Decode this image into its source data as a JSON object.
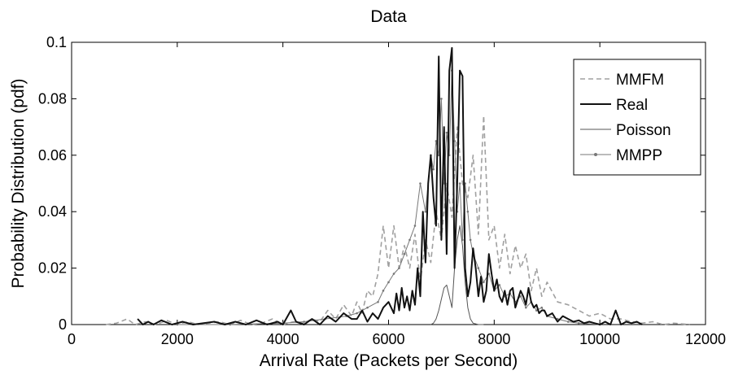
{
  "chart_data": {
    "type": "line",
    "title": "Data",
    "xlabel": "Arrival Rate (Packets per Second)",
    "ylabel": "Probability Distribution (pdf)",
    "xlim": [
      0,
      12000
    ],
    "ylim": [
      0,
      0.1
    ],
    "xticks": [
      0,
      2000,
      4000,
      6000,
      8000,
      10000,
      12000
    ],
    "yticks": [
      0,
      0.02,
      0.04,
      0.06,
      0.08,
      0.1
    ],
    "xtick_labels": [
      "0",
      "2000",
      "4000",
      "6000",
      "8000",
      "10000",
      "12000"
    ],
    "ytick_labels": [
      "0",
      "0.02",
      "0.04",
      "0.06",
      "0.08",
      "0.1"
    ],
    "grid": false,
    "legend": {
      "position": "top-right",
      "entries": [
        "MMFM",
        "Real",
        "Poisson",
        "MMPP"
      ]
    },
    "series": [
      {
        "name": "MMFM",
        "style": "dashed",
        "color": "#a0a0a0",
        "x": [
          650,
          850,
          1050,
          1200,
          1400,
          1600,
          1800,
          2000,
          2200,
          2400,
          2600,
          2800,
          3000,
          3200,
          3400,
          3600,
          3800,
          4000,
          4200,
          4400,
          4550,
          4700,
          4850,
          5000,
          5150,
          5300,
          5400,
          5500,
          5600,
          5700,
          5800,
          5900,
          6000,
          6100,
          6200,
          6300,
          6400,
          6500,
          6600,
          6700,
          6800,
          6900,
          7000,
          7100,
          7200,
          7300,
          7400,
          7500,
          7600,
          7700,
          7800,
          7900,
          8000,
          8100,
          8200,
          8300,
          8400,
          8500,
          8600,
          8700,
          8800,
          8900,
          9000,
          9200,
          9400,
          9600,
          9800,
          10000,
          10200,
          10400,
          10600,
          10800,
          11000,
          11200,
          11400,
          11700
        ],
        "y": [
          0.0,
          0.0005,
          0.002,
          0.0,
          0.001,
          0.0,
          0.0015,
          0.0,
          0.001,
          0.0,
          0.0005,
          0.001,
          0.0,
          0.0015,
          0.0,
          0.0005,
          0.002,
          0.0,
          0.001,
          0.0005,
          0.002,
          0.001,
          0.005,
          0.002,
          0.007,
          0.003,
          0.008,
          0.004,
          0.012,
          0.01,
          0.018,
          0.035,
          0.02,
          0.035,
          0.02,
          0.028,
          0.02,
          0.032,
          0.015,
          0.03,
          0.022,
          0.04,
          0.03,
          0.05,
          0.038,
          0.07,
          0.05,
          0.045,
          0.06,
          0.032,
          0.074,
          0.03,
          0.035,
          0.02,
          0.032,
          0.018,
          0.028,
          0.02,
          0.025,
          0.012,
          0.02,
          0.01,
          0.015,
          0.008,
          0.007,
          0.005,
          0.003,
          0.004,
          0.002,
          0.002,
          0.001,
          0.0005,
          0.001,
          0.0,
          0.0005,
          0.0
        ]
      },
      {
        "name": "Real",
        "style": "solid",
        "color": "#111111",
        "x": [
          1250,
          1350,
          1450,
          1550,
          1700,
          1900,
          2100,
          2300,
          2500,
          2700,
          2900,
          3100,
          3300,
          3500,
          3700,
          3900,
          4000,
          4150,
          4250,
          4400,
          4550,
          4700,
          4850,
          5000,
          5150,
          5300,
          5400,
          5500,
          5600,
          5700,
          5800,
          5900,
          6000,
          6100,
          6150,
          6200,
          6250,
          6300,
          6350,
          6400,
          6450,
          6500,
          6550,
          6600,
          6650,
          6700,
          6750,
          6800,
          6850,
          6900,
          6950,
          7000,
          7050,
          7100,
          7150,
          7200,
          7250,
          7300,
          7350,
          7400,
          7450,
          7500,
          7550,
          7600,
          7650,
          7700,
          7750,
          7800,
          7850,
          7900,
          7950,
          8000,
          8050,
          8100,
          8150,
          8200,
          8250,
          8300,
          8350,
          8400,
          8450,
          8500,
          8550,
          8600,
          8650,
          8700,
          8750,
          8800,
          8850,
          8900,
          8950,
          9000,
          9100,
          9200,
          9300,
          9400,
          9500,
          9600,
          9700,
          9800,
          9900,
          10000,
          10100,
          10200,
          10300,
          10400,
          10500,
          10600,
          10700,
          10800
        ],
        "y": [
          0.002,
          0.0,
          0.001,
          0.0,
          0.0015,
          0.0,
          0.001,
          0.0,
          0.0005,
          0.001,
          0.0,
          0.001,
          0.0,
          0.0015,
          0.0,
          0.001,
          0.0,
          0.005,
          0.001,
          0.0,
          0.002,
          0.0,
          0.003,
          0.001,
          0.004,
          0.002,
          0.002,
          0.005,
          0.001,
          0.004,
          0.002,
          0.006,
          0.008,
          0.004,
          0.011,
          0.005,
          0.013,
          0.006,
          0.01,
          0.005,
          0.012,
          0.007,
          0.02,
          0.01,
          0.04,
          0.022,
          0.05,
          0.06,
          0.045,
          0.035,
          0.095,
          0.03,
          0.07,
          0.025,
          0.09,
          0.098,
          0.02,
          0.05,
          0.09,
          0.088,
          0.02,
          0.01,
          0.015,
          0.027,
          0.02,
          0.01,
          0.017,
          0.008,
          0.012,
          0.025,
          0.018,
          0.012,
          0.016,
          0.01,
          0.008,
          0.012,
          0.007,
          0.012,
          0.013,
          0.006,
          0.009,
          0.012,
          0.01,
          0.007,
          0.013,
          0.008,
          0.006,
          0.007,
          0.004,
          0.005,
          0.005,
          0.003,
          0.004,
          0.001,
          0.003,
          0.002,
          0.001,
          0.0015,
          0.0005,
          0.001,
          0.0005,
          0.0,
          0.001,
          0.0,
          0.005,
          0.0,
          0.001,
          0.0005,
          0.001,
          0.0
        ]
      },
      {
        "name": "Poisson",
        "style": "solid",
        "color": "#555555",
        "x": [
          6800,
          6850,
          6900,
          6950,
          7000,
          7050,
          7100,
          7150,
          7200,
          7250,
          7300,
          7350,
          7400,
          7450,
          7500,
          7550,
          7600,
          7700,
          7800
        ],
        "y": [
          0.0,
          0.0005,
          0.002,
          0.005,
          0.009,
          0.013,
          0.014,
          0.01,
          0.006,
          0.02,
          0.03,
          0.035,
          0.028,
          0.015,
          0.006,
          0.002,
          0.0005,
          0.0,
          0.0
        ]
      },
      {
        "name": "MMPP",
        "style": "solid-dots",
        "color": "#777777",
        "x": [
          2000,
          3000,
          4000,
          4400,
          4800,
          5200,
          5400,
          5600,
          5800,
          5900,
          6000,
          6100,
          6200,
          6300,
          6400,
          6500,
          6600,
          6700,
          6800,
          6850,
          6900,
          6950,
          7000,
          7050,
          7100,
          7150,
          7200,
          7250,
          7300,
          7350,
          7400,
          7450,
          7500,
          7550,
          7600,
          7700,
          7800,
          7900,
          8000,
          8100,
          8200,
          8300,
          8400,
          8500,
          8600,
          8700,
          8800,
          8900,
          9000,
          9200,
          9400,
          9600,
          10000
        ],
        "y": [
          0.0,
          0.0,
          0.0005,
          0.001,
          0.002,
          0.003,
          0.004,
          0.006,
          0.008,
          0.012,
          0.015,
          0.018,
          0.02,
          0.025,
          0.03,
          0.035,
          0.05,
          0.04,
          0.06,
          0.055,
          0.065,
          0.06,
          0.08,
          0.05,
          0.068,
          0.06,
          0.09,
          0.065,
          0.04,
          0.05,
          0.03,
          0.05,
          0.04,
          0.03,
          0.025,
          0.02,
          0.015,
          0.018,
          0.012,
          0.014,
          0.01,
          0.011,
          0.008,
          0.01,
          0.006,
          0.008,
          0.005,
          0.006,
          0.003,
          0.002,
          0.001,
          0.0005,
          0.0
        ]
      }
    ]
  }
}
